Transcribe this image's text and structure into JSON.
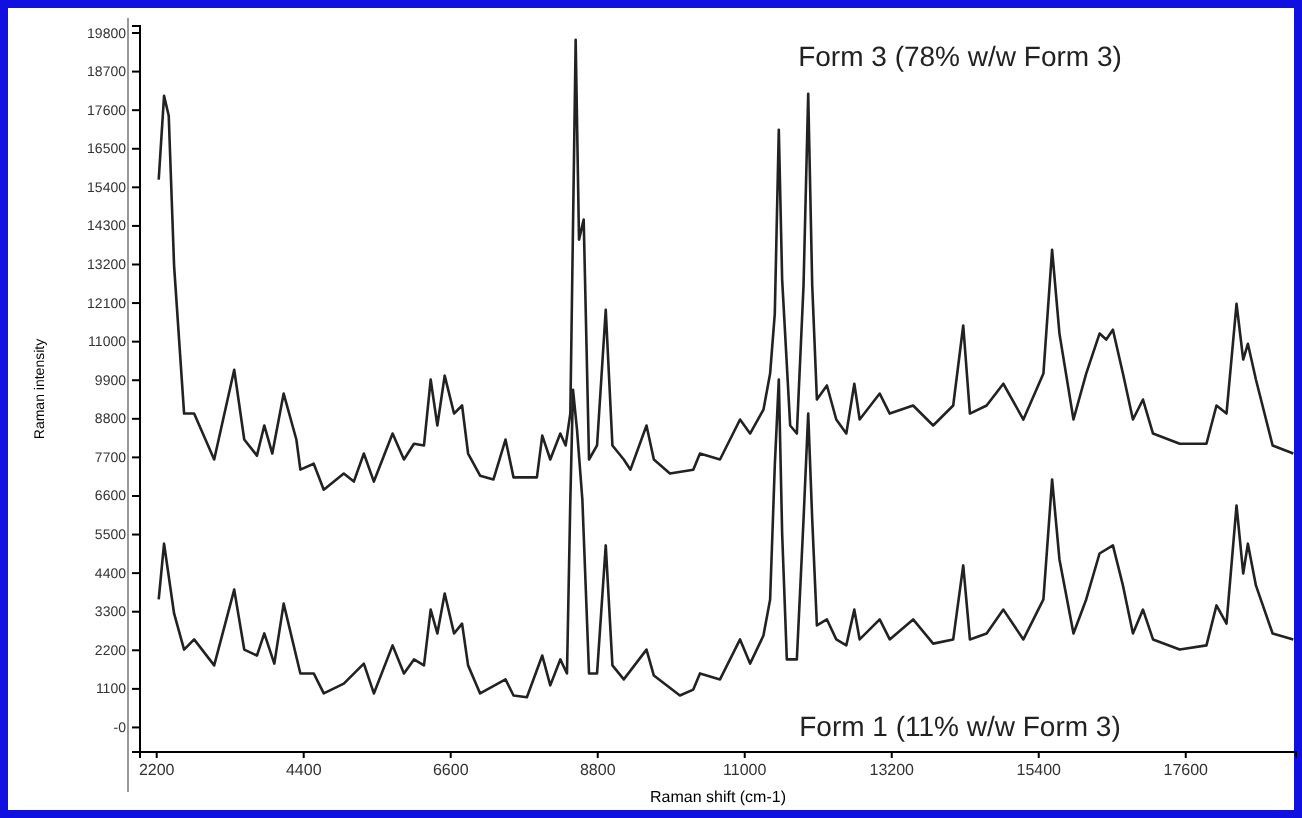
{
  "chart_data": {
    "type": "line",
    "xlabel": "Raman shift (cm-1)",
    "ylabel": "Raman intensity",
    "xlim": [
      1950,
      19250
    ],
    "ylim": [
      -700,
      20000
    ],
    "xticks": [
      2200,
      4400,
      6600,
      8800,
      11000,
      13200,
      15400,
      17600
    ],
    "yticks": [
      {
        "value": 0,
        "label": "-0"
      },
      1100,
      2200,
      3300,
      4400,
      5500,
      6600,
      7700,
      8800,
      9900,
      11000,
      12100,
      13200,
      14300,
      15400,
      16500,
      17600,
      18700,
      19800
    ],
    "grid": false,
    "line_style": "solid",
    "marker": "none",
    "series": [
      {
        "name": "Form 3 (78% w/w Form 3)",
        "color": "#222222",
        "x": [
          2230,
          2310,
          2380,
          2460,
          2610,
          2760,
          3060,
          3360,
          3510,
          3700,
          3810,
          3930,
          4100,
          4290,
          4350,
          4550,
          4700,
          5000,
          5150,
          5300,
          5450,
          5730,
          5900,
          6050,
          6200,
          6300,
          6400,
          6510,
          6650,
          6770,
          6860,
          7040,
          7240,
          7420,
          7540,
          7890,
          7970,
          8090,
          8240,
          8320,
          8390,
          8470,
          8520,
          8590,
          8670,
          8790,
          8920,
          9020,
          9190,
          9290,
          9530,
          9640,
          9880,
          10230,
          10330,
          10630,
          10930,
          11080,
          11280,
          11380,
          11450,
          11510,
          11560,
          11680,
          11780,
          11880,
          11950,
          12010,
          12080,
          12230,
          12370,
          12520,
          12640,
          12720,
          13020,
          13170,
          13520,
          13820,
          14120,
          14270,
          14370,
          14620,
          14870,
          15170,
          15470,
          15600,
          15710,
          15920,
          16110,
          16310,
          16410,
          16510,
          16660,
          16810,
          16960,
          17110,
          17510,
          17910,
          18060,
          18210,
          18360,
          18460,
          18530,
          18650,
          18900,
          19210
        ],
        "values": [
          15620,
          18010,
          17440,
          13170,
          8950,
          8950,
          7640,
          10200,
          8210,
          7750,
          8610,
          7810,
          9520,
          8210,
          7350,
          7520,
          6780,
          7240,
          7010,
          7810,
          7010,
          8380,
          7640,
          8090,
          8040,
          9920,
          8610,
          10030,
          8950,
          9180,
          7810,
          7180,
          7070,
          8210,
          7130,
          7130,
          8320,
          7640,
          8380,
          8040,
          8950,
          19610,
          13910,
          14480,
          7640,
          8040,
          11910,
          8040,
          7640,
          7350,
          8610,
          7640,
          7240,
          7350,
          7810,
          7640,
          8780,
          8380,
          9060,
          10090,
          11800,
          17040,
          12770,
          8610,
          8380,
          12600,
          18070,
          12600,
          9350,
          9750,
          8780,
          8380,
          9800,
          8780,
          9520,
          8950,
          9180,
          8610,
          9180,
          11460,
          8950,
          9180,
          9800,
          8780,
          10090,
          13620,
          11230,
          8780,
          10090,
          11230,
          11060,
          11340,
          10090,
          8780,
          9350,
          8380,
          8090,
          8090,
          9180,
          8950,
          12080,
          10490,
          10940,
          9920,
          8040,
          7810
        ]
      },
      {
        "name": "Form 1 (11% w/w Form 3)",
        "color": "#222222",
        "x": [
          2230,
          2310,
          2460,
          2610,
          2760,
          3060,
          3360,
          3510,
          3700,
          3810,
          3960,
          4100,
          4350,
          4550,
          4700,
          5000,
          5300,
          5450,
          5730,
          5900,
          6050,
          6200,
          6300,
          6400,
          6510,
          6650,
          6770,
          6860,
          7040,
          7420,
          7540,
          7740,
          7970,
          8090,
          8240,
          8340,
          8390,
          8430,
          8490,
          8570,
          8670,
          8790,
          8920,
          9020,
          9190,
          9530,
          9640,
          10030,
          10230,
          10330,
          10630,
          10930,
          11080,
          11280,
          11380,
          11450,
          11510,
          11560,
          11630,
          11780,
          11880,
          11950,
          12010,
          12080,
          12230,
          12370,
          12520,
          12640,
          12720,
          13020,
          13170,
          13520,
          13820,
          14120,
          14270,
          14370,
          14620,
          14870,
          15170,
          15470,
          15600,
          15710,
          15920,
          16110,
          16310,
          16510,
          16660,
          16810,
          16960,
          17110,
          17510,
          17910,
          18060,
          18210,
          18360,
          18460,
          18530,
          18650,
          18900,
          19210
        ],
        "values": [
          3650,
          5240,
          3250,
          2220,
          2510,
          1770,
          3930,
          2220,
          2050,
          2680,
          1820,
          3530,
          1540,
          1540,
          970,
          1250,
          1820,
          970,
          2340,
          1540,
          1940,
          1770,
          3360,
          2680,
          3820,
          2680,
          2960,
          1770,
          970,
          1370,
          910,
          860,
          2050,
          1200,
          1940,
          1540,
          6500,
          9630,
          8490,
          6500,
          1540,
          1540,
          5190,
          1770,
          1370,
          2220,
          1480,
          910,
          1080,
          1540,
          1370,
          2510,
          1820,
          2620,
          3650,
          7470,
          9920,
          5530,
          1940,
          1940,
          5930,
          8950,
          5930,
          2910,
          3080,
          2510,
          2340,
          3360,
          2510,
          3080,
          2510,
          3080,
          2390,
          2510,
          4620,
          2510,
          2680,
          3360,
          2510,
          3650,
          7070,
          4790,
          2680,
          3650,
          4960,
          5190,
          4050,
          2680,
          3360,
          2510,
          2220,
          2340,
          3480,
          2960,
          6330,
          4390,
          5240,
          4050,
          2680,
          2510
        ]
      }
    ]
  }
}
